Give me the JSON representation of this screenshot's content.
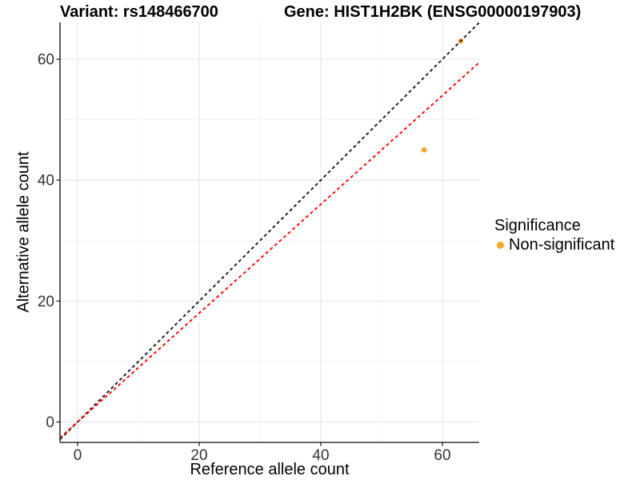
{
  "titles": {
    "variant": "Variant: rs148466700",
    "gene": "Gene: HIST1H2BK (ENSG00000197903)"
  },
  "axes": {
    "x": {
      "label": "Reference allele count",
      "tick_labels": [
        "0",
        "20",
        "40",
        "60"
      ],
      "tick_values": [
        0,
        20,
        40,
        60
      ],
      "minor_values": [
        10,
        30,
        50
      ]
    },
    "y": {
      "label": "Alternative allele count",
      "tick_labels": [
        "0",
        "20",
        "40",
        "60"
      ],
      "tick_values": [
        0,
        20,
        40,
        60
      ],
      "minor_values": [
        10,
        30,
        50
      ]
    }
  },
  "legend": {
    "title": "Significance",
    "items": [
      {
        "label": "Non-significant",
        "color": "#FFA424"
      }
    ]
  },
  "chart_data": {
    "type": "scatter",
    "title_left": "Variant: rs148466700",
    "title_right": "Gene: HIST1H2BK (ENSG00000197903)",
    "xlabel": "Reference allele count",
    "ylabel": "Alternative allele count",
    "xlim": [
      -2.9,
      66.1
    ],
    "ylim": [
      -3.4,
      66.1
    ],
    "grid": "on",
    "legend_position": "right",
    "points": [
      {
        "x": 57,
        "y": 45,
        "group": "Non-significant",
        "color": "#FFA424"
      },
      {
        "x": 63,
        "y": 63,
        "group": "Non-significant",
        "color": "#FFA424"
      }
    ],
    "lines": [
      {
        "name": "identity-line",
        "slope": 1.0,
        "intercept": 0,
        "color": "#1A1A1A",
        "style": "dashed"
      },
      {
        "name": "expected-ratio-line",
        "slope": 0.9,
        "intercept": 0,
        "color": "#FF0000",
        "style": "dashed"
      }
    ]
  },
  "colors": {
    "background": "#FFFFFF",
    "grid_major": "#E5E5E5",
    "grid_minor": "#F3F3F3",
    "axis_line": "#333333",
    "tick_label": "#333333",
    "point": "#FFA424",
    "identity_line": "#1A1A1A",
    "ratio_line": "#FF0000"
  }
}
